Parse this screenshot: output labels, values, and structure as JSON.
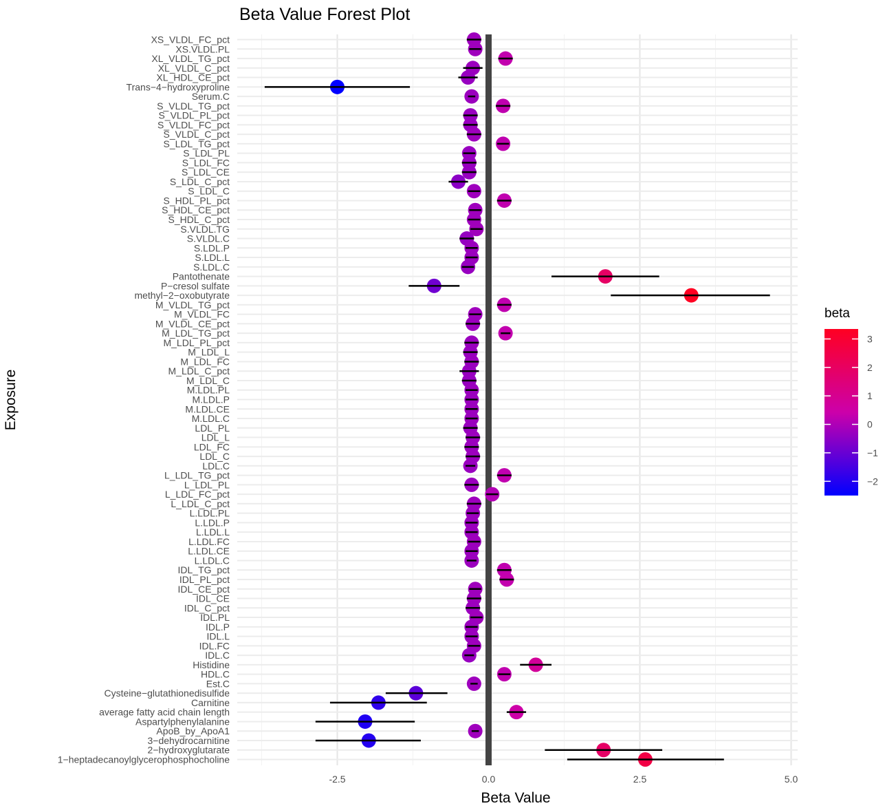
{
  "chart_data": {
    "type": "forest",
    "title": "Beta Value Forest Plot",
    "xlabel": "Beta Value",
    "ylabel": "Exposure",
    "xlim": [
      -3.75,
      5.05
    ],
    "xticks": [
      -2.5,
      0.0,
      2.5,
      5.0
    ],
    "xtick_labels": [
      "-2.5",
      "0.0",
      "2.5",
      "5.0"
    ],
    "reference_line": 0,
    "grid": true,
    "legend": {
      "title": "beta",
      "position": "right",
      "ticks": [
        3,
        2,
        1,
        0,
        -1,
        -2
      ],
      "tick_labels": [
        "3",
        "2",
        "1",
        "0",
        "−1",
        "−2"
      ],
      "range": [
        -2.5,
        3.35
      ],
      "colors": [
        "#0000ff",
        "#cc00aa",
        "#ff0022"
      ]
    },
    "rows": [
      {
        "label": "XS_VLDL_FC_pct",
        "beta": -0.24,
        "lo": -0.36,
        "hi": -0.12
      },
      {
        "label": "XS.VLDL.PL",
        "beta": -0.22,
        "lo": -0.32,
        "hi": -0.12
      },
      {
        "label": "XL_VLDL_TG_pct",
        "beta": 0.28,
        "lo": 0.16,
        "hi": 0.4
      },
      {
        "label": "XL_VLDL_C_pct",
        "beta": -0.26,
        "lo": -0.42,
        "hi": -0.1
      },
      {
        "label": "XL_HDL_CE_pct",
        "beta": -0.34,
        "lo": -0.5,
        "hi": -0.18
      },
      {
        "label": "Trans−4−hydroxyproline",
        "beta": -2.5,
        "lo": -3.7,
        "hi": -1.3
      },
      {
        "label": "Serum.C",
        "beta": -0.28,
        "lo": -0.34,
        "hi": -0.22
      },
      {
        "label": "S_VLDL_TG_pct",
        "beta": 0.24,
        "lo": 0.12,
        "hi": 0.36
      },
      {
        "label": "S_VLDL_PL_pct",
        "beta": -0.3,
        "lo": -0.42,
        "hi": -0.18
      },
      {
        "label": "S_VLDL_FC_pct",
        "beta": -0.3,
        "lo": -0.42,
        "hi": -0.18
      },
      {
        "label": "S_VLDL_C_pct",
        "beta": -0.24,
        "lo": -0.36,
        "hi": -0.12
      },
      {
        "label": "S_LDL_TG_pct",
        "beta": 0.24,
        "lo": 0.14,
        "hi": 0.34
      },
      {
        "label": "S_LDL_PL",
        "beta": -0.32,
        "lo": -0.42,
        "hi": -0.22
      },
      {
        "label": "S_LDL_FC",
        "beta": -0.32,
        "lo": -0.44,
        "hi": -0.2
      },
      {
        "label": "S_LDL_CE",
        "beta": -0.32,
        "lo": -0.44,
        "hi": -0.2
      },
      {
        "label": "S_LDL_C_pct",
        "beta": -0.5,
        "lo": -0.66,
        "hi": -0.34
      },
      {
        "label": "S_LDL_C",
        "beta": -0.24,
        "lo": -0.34,
        "hi": -0.14
      },
      {
        "label": "S_HDL_PL_pct",
        "beta": 0.26,
        "lo": 0.14,
        "hi": 0.38
      },
      {
        "label": "S_HDL_CE_pct",
        "beta": -0.22,
        "lo": -0.32,
        "hi": -0.12
      },
      {
        "label": "S_HDL_C_pct",
        "beta": -0.24,
        "lo": -0.34,
        "hi": -0.14
      },
      {
        "label": "S.VLDL.TG",
        "beta": -0.2,
        "lo": -0.3,
        "hi": -0.1
      },
      {
        "label": "S.VLDL.C",
        "beta": -0.36,
        "lo": -0.48,
        "hi": -0.24
      },
      {
        "label": "S.LDL.P",
        "beta": -0.28,
        "lo": -0.38,
        "hi": -0.18
      },
      {
        "label": "S.LDL.L",
        "beta": -0.28,
        "lo": -0.38,
        "hi": -0.18
      },
      {
        "label": "S.LDL.C",
        "beta": -0.34,
        "lo": -0.44,
        "hi": -0.24
      },
      {
        "label": "Pantothenate",
        "beta": 1.93,
        "lo": 1.04,
        "hi": 2.82
      },
      {
        "label": "P−cresol sulfate",
        "beta": -0.9,
        "lo": -1.32,
        "hi": -0.48
      },
      {
        "label": "methyl−2−oxobutyrate",
        "beta": 3.35,
        "lo": 2.02,
        "hi": 4.65
      },
      {
        "label": "M_VLDL_TG_pct",
        "beta": 0.26,
        "lo": 0.14,
        "hi": 0.38
      },
      {
        "label": "M_VLDL_FC",
        "beta": -0.22,
        "lo": -0.32,
        "hi": -0.12
      },
      {
        "label": "M_VLDL_CE_pct",
        "beta": -0.26,
        "lo": -0.38,
        "hi": -0.14
      },
      {
        "label": "M_LDL_TG_pct",
        "beta": 0.28,
        "lo": 0.2,
        "hi": 0.36
      },
      {
        "label": "M_LDL_PL_pct",
        "beta": -0.28,
        "lo": -0.4,
        "hi": -0.16
      },
      {
        "label": "M_LDL_L",
        "beta": -0.3,
        "lo": -0.42,
        "hi": -0.18
      },
      {
        "label": "M_LDL_FC",
        "beta": -0.28,
        "lo": -0.4,
        "hi": -0.16
      },
      {
        "label": "M_LDL_C_pct",
        "beta": -0.32,
        "lo": -0.48,
        "hi": -0.16
      },
      {
        "label": "M_LDL_C",
        "beta": -0.32,
        "lo": -0.44,
        "hi": -0.2
      },
      {
        "label": "M.LDL.PL",
        "beta": -0.28,
        "lo": -0.38,
        "hi": -0.18
      },
      {
        "label": "M.LDL.P",
        "beta": -0.28,
        "lo": -0.38,
        "hi": -0.18
      },
      {
        "label": "M.LDL.CE",
        "beta": -0.28,
        "lo": -0.38,
        "hi": -0.18
      },
      {
        "label": "M.LDL.C",
        "beta": -0.28,
        "lo": -0.38,
        "hi": -0.18
      },
      {
        "label": "LDL_PL",
        "beta": -0.3,
        "lo": -0.42,
        "hi": -0.18
      },
      {
        "label": "LDL_L",
        "beta": -0.26,
        "lo": -0.38,
        "hi": -0.14
      },
      {
        "label": "LDL_FC",
        "beta": -0.28,
        "lo": -0.4,
        "hi": -0.16
      },
      {
        "label": "LDL_C",
        "beta": -0.26,
        "lo": -0.38,
        "hi": -0.14
      },
      {
        "label": "LDL.C",
        "beta": -0.3,
        "lo": -0.38,
        "hi": -0.22
      },
      {
        "label": "L_LDL_TG_pct",
        "beta": 0.26,
        "lo": 0.14,
        "hi": 0.38
      },
      {
        "label": "L_LDL_PL",
        "beta": -0.28,
        "lo": -0.4,
        "hi": -0.16
      },
      {
        "label": "L_LDL_FC_pct",
        "beta": 0.06,
        "lo": -0.04,
        "hi": 0.16
      },
      {
        "label": "L_LDL_C_pct",
        "beta": -0.24,
        "lo": -0.36,
        "hi": -0.12
      },
      {
        "label": "L.LDL.PL",
        "beta": -0.26,
        "lo": -0.36,
        "hi": -0.16
      },
      {
        "label": "L.LDL.P",
        "beta": -0.28,
        "lo": -0.38,
        "hi": -0.18
      },
      {
        "label": "L.LDL.L",
        "beta": -0.28,
        "lo": -0.38,
        "hi": -0.18
      },
      {
        "label": "L.LDL.FC",
        "beta": -0.24,
        "lo": -0.34,
        "hi": -0.14
      },
      {
        "label": "L.LDL.CE",
        "beta": -0.28,
        "lo": -0.38,
        "hi": -0.18
      },
      {
        "label": "L.LDL.C",
        "beta": -0.28,
        "lo": -0.36,
        "hi": -0.2
      },
      {
        "label": "IDL_TG_pct",
        "beta": 0.26,
        "lo": 0.14,
        "hi": 0.38
      },
      {
        "label": "IDL_PL_pct",
        "beta": 0.3,
        "lo": 0.18,
        "hi": 0.42
      },
      {
        "label": "IDL_CE_pct",
        "beta": -0.22,
        "lo": -0.32,
        "hi": -0.12
      },
      {
        "label": "IDL_CE",
        "beta": -0.24,
        "lo": -0.36,
        "hi": -0.12
      },
      {
        "label": "IDL_C_pct",
        "beta": -0.26,
        "lo": -0.38,
        "hi": -0.14
      },
      {
        "label": "IDL.PL",
        "beta": -0.2,
        "lo": -0.3,
        "hi": -0.1
      },
      {
        "label": "IDL.P",
        "beta": -0.28,
        "lo": -0.38,
        "hi": -0.18
      },
      {
        "label": "IDL.L",
        "beta": -0.28,
        "lo": -0.38,
        "hi": -0.18
      },
      {
        "label": "IDL.FC",
        "beta": -0.24,
        "lo": -0.34,
        "hi": -0.14
      },
      {
        "label": "IDL.C",
        "beta": -0.32,
        "lo": -0.4,
        "hi": -0.24
      },
      {
        "label": "Histidine",
        "beta": 0.78,
        "lo": 0.52,
        "hi": 1.04
      },
      {
        "label": "HDL.C",
        "beta": 0.26,
        "lo": 0.16,
        "hi": 0.36
      },
      {
        "label": "Est.C",
        "beta": -0.24,
        "lo": -0.3,
        "hi": -0.18
      },
      {
        "label": "Cysteine−glutathionedisulfide",
        "beta": -1.2,
        "lo": -1.7,
        "hi": -0.68
      },
      {
        "label": "Carnitine",
        "beta": -1.82,
        "lo": -2.62,
        "hi": -1.02
      },
      {
        "label": "average fatty acid chain length",
        "beta": 0.46,
        "lo": 0.3,
        "hi": 0.62
      },
      {
        "label": "Aspartylphenylalanine",
        "beta": -2.04,
        "lo": -2.86,
        "hi": -1.22
      },
      {
        "label": "ApoB_by_ApoA1",
        "beta": -0.22,
        "lo": -0.28,
        "hi": -0.16
      },
      {
        "label": "3−dehydrocarnitine",
        "beta": -1.98,
        "lo": -2.86,
        "hi": -1.12
      },
      {
        "label": "2−hydroxyglutarate",
        "beta": 1.9,
        "lo": 0.93,
        "hi": 2.87
      },
      {
        "label": "1−heptadecanoylglycerophosphocholine",
        "beta": 2.59,
        "lo": 1.3,
        "hi": 3.89
      }
    ]
  }
}
